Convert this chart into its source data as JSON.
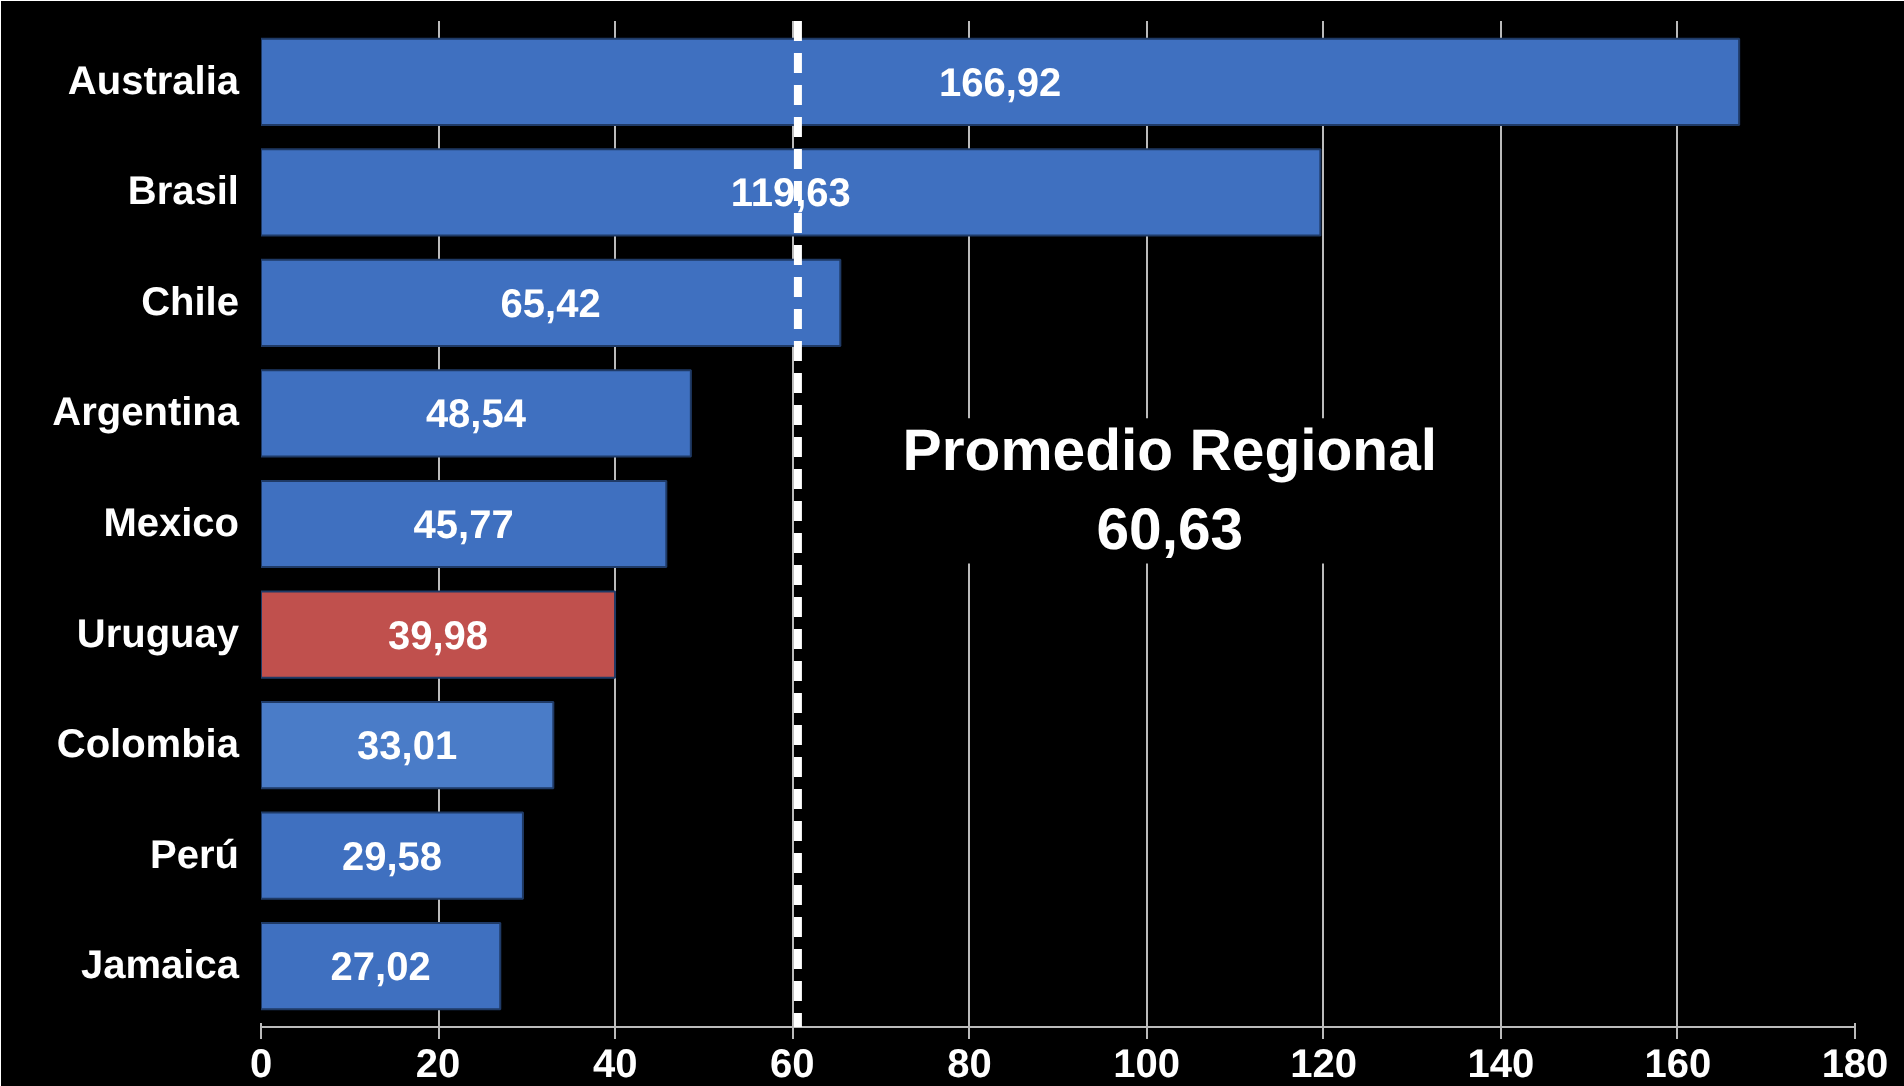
{
  "chart_data": {
    "type": "bar",
    "orientation": "horizontal",
    "categories": [
      "Australia",
      "Brasil",
      "Chile",
      "Argentina",
      "Mexico",
      "Uruguay",
      "Colombia",
      "Perú",
      "Jamaica"
    ],
    "values": [
      166.92,
      119.63,
      65.42,
      48.54,
      45.77,
      39.98,
      33.01,
      29.58,
      27.02
    ],
    "value_labels": [
      "166,92",
      "119,63",
      "65,42",
      "48,54",
      "45,77",
      "39,98",
      "33,01",
      "29,58",
      "27,02"
    ],
    "colors": [
      "#3f70c0",
      "#3f70c0",
      "#3f70c0",
      "#3f70c0",
      "#3f70c0",
      "#c0504d",
      "#4a7cc8",
      "#3f70c0",
      "#3f70c0"
    ],
    "xlim": [
      0,
      180
    ],
    "xticks": [
      0,
      20,
      40,
      60,
      80,
      100,
      120,
      140,
      160,
      180
    ],
    "grid": "x",
    "ref_lines": [
      {
        "axis": "x",
        "value": 60.63,
        "label": "Promedio Regional\n60,63",
        "color": "#ffffff",
        "line_style": "dashed"
      }
    ]
  }
}
